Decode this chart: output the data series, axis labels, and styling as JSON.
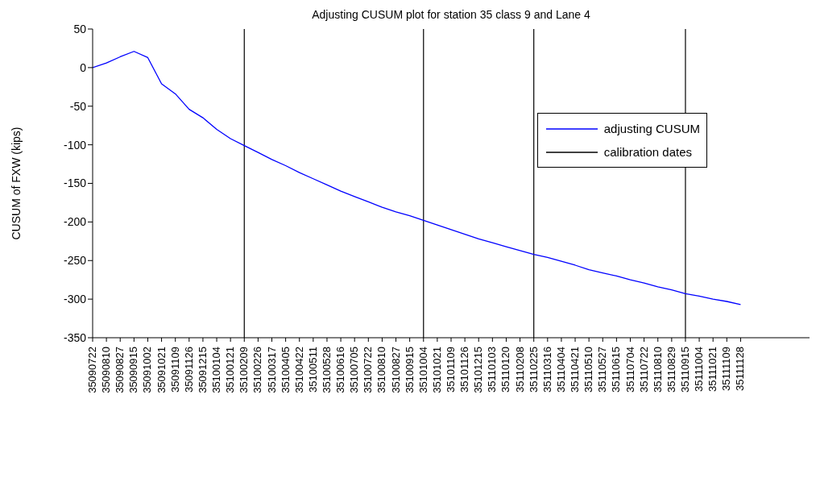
{
  "chart_data": {
    "type": "line",
    "title": "Adjusting CUSUM plot for station 35 class 9 and Lane 4",
    "ylabel": "CUSUM of FXW (kips)",
    "categories": [
      "35090722",
      "35090810",
      "35090827",
      "35090915",
      "35091002",
      "35091021",
      "35091109",
      "35091126",
      "35091215",
      "35100104",
      "35100121",
      "35100209",
      "35100226",
      "35100317",
      "35100405",
      "35100422",
      "35100511",
      "35100528",
      "35100616",
      "35100705",
      "35100722",
      "35100810",
      "35100827",
      "35100915",
      "35101004",
      "35101021",
      "35101109",
      "35101126",
      "35101215",
      "35110103",
      "35110120",
      "35110208",
      "35110225",
      "35110316",
      "35110404",
      "35110421",
      "35110510",
      "35110527",
      "35110615",
      "35110704",
      "35110722",
      "35110810",
      "35110829",
      "35110915",
      "35111004",
      "35111021",
      "35111109",
      "35111128",
      null,
      null,
      null,
      null,
      null
    ],
    "ylim": [
      -350,
      50
    ],
    "yticks": [
      -350,
      -300,
      -250,
      -200,
      -150,
      -100,
      -50,
      0,
      50
    ],
    "grid": false,
    "legend": "right",
    "marker": "none",
    "line_style": "solid",
    "series": [
      {
        "name": "adjusting CUSUM",
        "color": "#0000ff",
        "values": [
          0,
          6,
          14,
          21,
          13,
          -21,
          -34,
          -54,
          -65,
          -80,
          -92,
          -101,
          -110,
          -119,
          -127,
          -136,
          -144,
          -152,
          -160,
          -167,
          -174,
          -181,
          -187,
          -192,
          -198,
          -204,
          -210,
          -216,
          -222,
          -227,
          -232,
          -237,
          -242,
          -246,
          -251,
          -256,
          -262,
          -266,
          -270,
          -275,
          -279,
          -284,
          -288,
          -293,
          -296,
          -300,
          -303,
          -307,
          null,
          null,
          null,
          null,
          null
        ]
      }
    ],
    "ref_lines": [
      {
        "axis": "x",
        "value": "35100209",
        "label": "calibration dates",
        "color": "#000000"
      },
      {
        "axis": "x",
        "value": "35101004",
        "color": "#000000"
      },
      {
        "axis": "x",
        "value": "35110225",
        "color": "#000000"
      },
      {
        "axis": "x",
        "value": "35110915",
        "color": "#000000"
      }
    ]
  }
}
